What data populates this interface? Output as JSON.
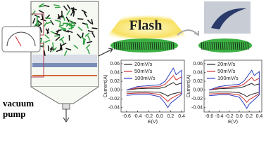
{
  "diagram": {
    "flash_label": "Flash",
    "pump_label": [
      "vacuum",
      "pump"
    ]
  },
  "charts": [
    {
      "type": "line",
      "ylabel": "Current(A)",
      "xlabel": "E(V)",
      "xlim": [
        -0.7,
        0.45
      ],
      "ylim": [
        -0.05,
        0.068
      ],
      "xticks": [
        -0.6,
        -0.4,
        -0.2,
        {
          "value": 0,
          "label": "0.0"
        },
        0.2,
        0.4
      ],
      "yticks": [
        0.06,
        0.04,
        0.02,
        {
          "value": 0,
          "label": "0.00"
        },
        -0.02,
        -0.04
      ],
      "x": [
        -0.6,
        -0.4,
        -0.2,
        0.0,
        0.1,
        0.2,
        0.25,
        0.3,
        0.4,
        0.4,
        0.3,
        0.2,
        0.15,
        0.1,
        0.0,
        -0.2,
        -0.4,
        -0.6
      ],
      "series": [
        {
          "name": "20mV/s",
          "color": "#222222",
          "values": [
            0.0,
            0.003,
            0.004,
            0.004,
            0.007,
            0.014,
            0.017,
            0.012,
            0.016,
            -0.004,
            -0.007,
            -0.01,
            -0.014,
            -0.01,
            -0.005,
            -0.004,
            -0.004,
            -0.004
          ]
        },
        {
          "name": "50mV/s",
          "color": "#d03030",
          "values": [
            0.0,
            0.005,
            0.007,
            0.008,
            0.013,
            0.026,
            0.033,
            0.023,
            0.03,
            -0.007,
            -0.013,
            -0.02,
            -0.026,
            -0.02,
            -0.01,
            -0.007,
            -0.007,
            -0.008
          ]
        },
        {
          "name": "100mV/s",
          "color": "#3040c0",
          "values": [
            0.0,
            0.008,
            0.01,
            0.012,
            0.02,
            0.04,
            0.05,
            0.035,
            0.045,
            -0.01,
            -0.02,
            -0.03,
            -0.04,
            -0.03,
            -0.015,
            -0.01,
            -0.01,
            -0.012
          ]
        }
      ]
    },
    {
      "type": "line",
      "ylabel": "Current(A)",
      "xlabel": "E(V)",
      "xlim": [
        -0.7,
        0.45
      ],
      "ylim": [
        -0.05,
        0.068
      ],
      "xticks": [
        -0.6,
        -0.4,
        -0.2,
        {
          "value": 0,
          "label": "0.0"
        },
        0.2,
        0.4
      ],
      "yticks": [
        0.06,
        0.04,
        0.02,
        {
          "value": 0,
          "label": "0.00"
        },
        -0.02,
        -0.04
      ],
      "x": [
        -0.6,
        -0.4,
        -0.2,
        0.0,
        0.1,
        0.2,
        0.25,
        0.3,
        0.4,
        0.4,
        0.3,
        0.2,
        0.15,
        0.1,
        0.0,
        -0.2,
        -0.4,
        -0.6
      ],
      "series": [
        {
          "name": "20mV/s",
          "color": "#222222",
          "values": [
            0.0,
            0.003,
            0.004,
            0.005,
            0.008,
            0.013,
            0.015,
            0.011,
            0.014,
            -0.005,
            -0.008,
            -0.012,
            -0.015,
            -0.011,
            -0.006,
            -0.004,
            -0.004,
            -0.005
          ]
        },
        {
          "name": "50mV/s",
          "color": "#d03030",
          "values": [
            0.0,
            0.005,
            0.007,
            0.009,
            0.014,
            0.024,
            0.029,
            0.021,
            0.027,
            -0.008,
            -0.015,
            -0.022,
            -0.028,
            -0.021,
            -0.011,
            -0.008,
            -0.008,
            -0.009
          ]
        },
        {
          "name": "100mV/s",
          "color": "#3040c0",
          "values": [
            0.0,
            0.008,
            0.011,
            0.013,
            0.021,
            0.037,
            0.045,
            0.033,
            0.042,
            -0.011,
            -0.022,
            -0.032,
            -0.042,
            -0.032,
            -0.016,
            -0.011,
            -0.011,
            -0.013
          ]
        }
      ]
    }
  ]
}
